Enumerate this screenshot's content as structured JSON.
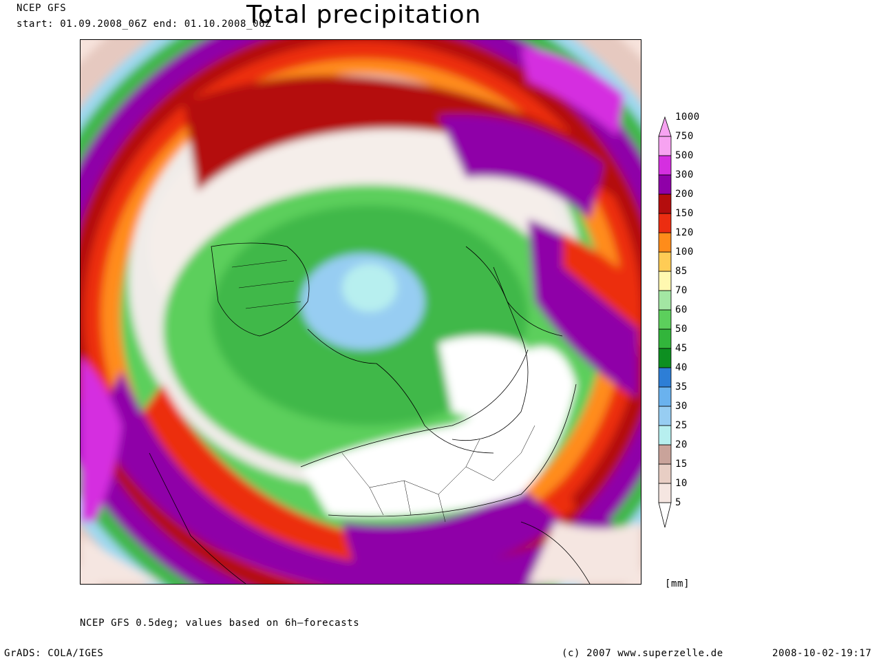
{
  "header": {
    "model": "NCEP GFS",
    "period": "start: 01.09.2008_06Z end: 01.10.2008_06Z",
    "title": "Total precipitation"
  },
  "map": {
    "projection": "north polar stereographic",
    "background_color": "#f7e3dc"
  },
  "legend": {
    "unit": "[mm]",
    "levels": [
      "5",
      "10",
      "15",
      "20",
      "25",
      "30",
      "35",
      "40",
      "45",
      "50",
      "60",
      "70",
      "85",
      "100",
      "120",
      "150",
      "200",
      "300",
      "500",
      "750",
      "1000"
    ],
    "colors": [
      "#ffffff",
      "#f5e6e1",
      "#e8cec4",
      "#c9a39a",
      "#b7efef",
      "#97cdf2",
      "#6ab2ee",
      "#2d7ed6",
      "#0d8f21",
      "#32b53b",
      "#5ccf5c",
      "#a3e6a3",
      "#fff8b0",
      "#ffcc55",
      "#ff8c1a",
      "#ec2d11",
      "#b40d0d",
      "#8f00a8",
      "#d52fe0",
      "#f7a3f1"
    ]
  },
  "footer": {
    "note": "NCEP GFS 0.5deg; values based on 6h—forecasts",
    "software": "GrADS: COLA/IGES",
    "copyright": "(c) 2007 www.superzelle.de",
    "timestamp": "2008-10-02-19:17"
  }
}
